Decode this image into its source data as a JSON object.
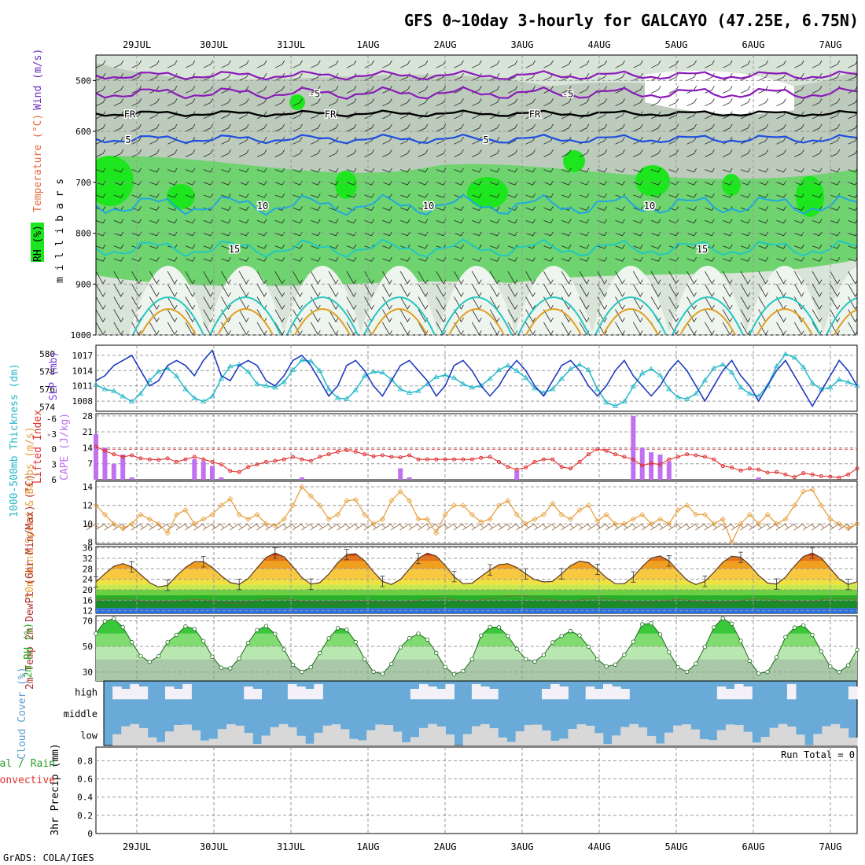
{
  "title": "GFS 0~10day 3-hourly for GALCAYO (47.25E, 6.75N)",
  "credit": "GrADS: COLA/IGES",
  "dates": [
    "29JUL",
    "30JUL",
    "31JUL",
    "1AUG",
    "2AUG",
    "3AUG",
    "4AUG",
    "5AUG",
    "6AUG",
    "7AUG"
  ],
  "colors": {
    "rh_light": "#d8e4d8",
    "rh_mid": "#b9c8b9",
    "rh_green": "#6fd46f",
    "rh_bright": "#1ee61e",
    "temp_purple": "#8a1ab8",
    "temp_blue": "#1f4fe0",
    "temp_cyan": "#22a8e0",
    "temp_teal": "#22c8c0",
    "temp_orange": "#e0a020",
    "slp": "#1f3cc0",
    "thickness": "#22b8c8",
    "cape": "#c070f0",
    "lifted": "#e03030",
    "wind": "#e8a040",
    "tmax": "#e05010",
    "dewpt": "#28a028",
    "rh2m": "#22cc22",
    "cloud": "#6aaad8",
    "cloud_gap": "#f4f0f8",
    "cloud_low": "#d8d8d8"
  },
  "chart_data": [
    {
      "panel": "upper-air",
      "type": "heatmap",
      "xlabel": "",
      "ylabel": "m i l l i b a r s",
      "legend": [
        "RH (%)",
        "Temperature (°C)",
        "Wind (m/s)"
      ],
      "ylim": [
        1000,
        450
      ],
      "yticks": [
        500,
        600,
        700,
        800,
        900,
        1000
      ],
      "contour_labels": [
        "-5",
        "FR",
        "5",
        "10",
        "15"
      ],
      "isotherm_levels_mb": {
        "m5": 525,
        "FR": 565,
        "p5": 615,
        "p10": 745,
        "p15": 830
      },
      "isotherm_labels_text": {
        "m5": "-5",
        "FR": "FR",
        "p5": "5",
        "p10": "10",
        "p15": "15"
      }
    },
    {
      "panel": "slp-thickness",
      "type": "line",
      "ylabel_left": "1000-500mb Thickness (dm)",
      "ylabel_right": "SLP (mb)",
      "left_ticks": [
        574,
        576,
        578,
        580
      ],
      "right_ticks": [
        1008,
        1011,
        1014,
        1017
      ],
      "ylim_slp": [
        1006,
        1019
      ],
      "ylim_thickness": [
        573.5,
        581
      ],
      "series": [
        {
          "name": "SLP",
          "values": [
            1012,
            1013,
            1015,
            1016,
            1017,
            1014,
            1011,
            1012,
            1015,
            1016,
            1015,
            1013,
            1016,
            1018,
            1013,
            1012,
            1015,
            1016,
            1015,
            1012,
            1011,
            1013,
            1016,
            1017,
            1015,
            1012,
            1009,
            1011,
            1015,
            1016,
            1014,
            1011,
            1009,
            1012,
            1015,
            1016,
            1014,
            1012,
            1009,
            1011,
            1015,
            1016,
            1014,
            1011,
            1009,
            1011,
            1014,
            1016,
            1014,
            1011,
            1009,
            1012,
            1015,
            1016,
            1014,
            1011,
            1009,
            1011,
            1014,
            1016,
            1013,
            1011,
            1009,
            1011,
            1014,
            1016,
            1014,
            1011,
            1008,
            1011,
            1014,
            1016,
            1013,
            1011,
            1008,
            1011,
            1014,
            1016,
            1013,
            1010,
            1007,
            1010,
            1013,
            1016,
            1014,
            1011
          ]
        },
        {
          "name": "Thickness",
          "values": [
            576.5,
            576.0,
            575.8,
            575.2,
            574.6,
            575.5,
            577.0,
            578.0,
            578.4,
            577.5,
            576.0,
            575.0,
            574.6,
            575.2,
            577.2,
            578.6,
            578.8,
            578.0,
            576.6,
            576.4,
            576.2,
            576.8,
            578.2,
            579.3,
            579.2,
            578.1,
            576.0,
            575.0,
            574.9,
            575.9,
            577.5,
            578.0,
            577.9,
            577.1,
            576.0,
            575.6,
            575.8,
            576.6,
            577.4,
            577.6,
            577.3,
            576.6,
            576.2,
            576.4,
            577.2,
            578.2,
            578.7,
            578.1,
            577.3,
            576.1,
            575.6,
            576.0,
            577.2,
            578.3,
            578.8,
            578.2,
            576.0,
            574.5,
            574.1,
            574.6,
            576.3,
            577.8,
            578.3,
            577.6,
            576.0,
            575.1,
            574.9,
            575.5,
            577.0,
            578.4,
            578.8,
            577.9,
            576.2,
            575.5,
            575.2,
            576.4,
            578.6,
            580.0,
            579.6,
            578.5,
            576.7,
            576.0,
            576.2,
            577.1,
            576.8,
            576.4
          ]
        }
      ]
    },
    {
      "panel": "cape-lifted",
      "type": "bar",
      "ylabel_left": "Lifted Index",
      "ylabel_right": "CAPE (J/kg)",
      "left_ticks": [
        "6",
        "3",
        "0",
        "-3",
        "-6"
      ],
      "right_ticks": [
        7,
        14,
        21,
        28
      ],
      "ylim_cape": [
        0,
        29
      ],
      "ylim_li": [
        6,
        -7
      ],
      "series": [
        {
          "name": "CAPE",
          "values": [
            20,
            14,
            7,
            11,
            1,
            0,
            0,
            0,
            0,
            0,
            0,
            9,
            8,
            6,
            1,
            0,
            0,
            0,
            0,
            0,
            0,
            0,
            0,
            1,
            0,
            0,
            0,
            0,
            0,
            0,
            0,
            0,
            0,
            0,
            5,
            1,
            0,
            0,
            0,
            0,
            0,
            0,
            0,
            0,
            0,
            0,
            0,
            4,
            0,
            0,
            0,
            0,
            0,
            0,
            0,
            0,
            0,
            0,
            0,
            0,
            28,
            14,
            12,
            11,
            8,
            0,
            0,
            0,
            0,
            0,
            0,
            0,
            0,
            0,
            1,
            0,
            0,
            0,
            0,
            0,
            0,
            0,
            0,
            0,
            0,
            0
          ]
        },
        {
          "name": "Lifted Index",
          "values": [
            -0.5,
            0.3,
            1.0,
            1.5,
            1.2,
            1.8,
            2.0,
            2.1,
            1.8,
            2.5,
            2.0,
            1.5,
            2.0,
            2.5,
            3.0,
            4.3,
            4.5,
            3.5,
            3.0,
            2.5,
            2.3,
            2.0,
            1.5,
            2.0,
            2.3,
            1.5,
            1.0,
            0.5,
            0.2,
            0.5,
            1.0,
            1.4,
            1.2,
            1.5,
            1.6,
            1.2,
            2.0,
            2.0,
            2.0,
            2.0,
            2.0,
            2.0,
            2.0,
            1.7,
            1.5,
            2.5,
            3.5,
            4.0,
            3.6,
            2.5,
            2.0,
            2.0,
            3.5,
            3.8,
            2.5,
            1.0,
            0.0,
            0.3,
            1.0,
            1.5,
            2.0,
            3.2,
            2.8,
            3.0,
            2.0,
            1.5,
            1.0,
            1.2,
            1.5,
            2.0,
            3.3,
            3.6,
            4.2,
            3.8,
            4.0,
            4.6,
            4.5,
            5.0,
            5.5,
            4.7,
            5.0,
            5.3,
            5.4,
            5.6,
            5.0,
            3.8
          ]
        }
      ]
    },
    {
      "panel": "wind10m",
      "type": "line",
      "ylabel": "10m Wind Speed & Barbs (m/s)",
      "yticks": [
        8,
        10,
        12,
        14
      ],
      "ylim": [
        7.8,
        14.6
      ],
      "series": [
        {
          "name": "Wind Speed",
          "values": [
            12.0,
            11.0,
            10.0,
            9.5,
            10.0,
            11.0,
            10.5,
            10.0,
            9.0,
            11.0,
            11.5,
            10.0,
            10.5,
            11.0,
            12.0,
            12.7,
            11.0,
            10.5,
            11.0,
            10.0,
            9.8,
            10.5,
            12.0,
            14.0,
            13.0,
            12.0,
            10.5,
            11.0,
            12.5,
            12.6,
            11.0,
            10.0,
            10.5,
            12.5,
            13.5,
            12.5,
            10.5,
            10.5,
            9.0,
            11.0,
            12.0,
            12.0,
            11.0,
            10.2,
            10.5,
            12.0,
            12.5,
            11.0,
            10.0,
            10.5,
            11.0,
            12.2,
            11.0,
            10.5,
            11.5,
            12.0,
            10.3,
            11.0,
            10.0,
            10.0,
            10.5,
            11.0,
            10.0,
            10.5,
            10.0,
            11.5,
            12.0,
            11.0,
            11.0,
            10.0,
            10.5,
            8.0,
            10.0,
            11.0,
            10.0,
            11.0,
            10.0,
            10.5,
            12.0,
            13.5,
            13.7,
            12.0,
            10.5,
            10.0,
            9.5,
            10.0
          ]
        }
      ]
    },
    {
      "panel": "temp2m",
      "type": "area",
      "ylabel": "2m Temp 2m DewPt (6hr Min/Max) (°C)",
      "yticks": [
        12,
        16,
        20,
        24,
        28,
        32,
        36
      ],
      "ylim": [
        11,
        36.5
      ],
      "tmax_peaks": [
        30,
        31,
        34,
        34,
        34,
        30,
        31,
        33,
        33,
        34,
        34
      ],
      "tmin_troughs": [
        21,
        22,
        22,
        22,
        22,
        23,
        22,
        22,
        22,
        22,
        22
      ],
      "dewpoint_values": [
        16,
        15.5,
        16,
        15,
        16,
        17,
        16,
        15.5,
        15.8,
        16
      ]
    },
    {
      "panel": "rh2m",
      "type": "area",
      "ylabel": "2m RH (%)",
      "yticks": [
        30,
        50,
        70
      ],
      "ylim": [
        23,
        74
      ],
      "peaks": [
        72,
        66,
        66,
        65,
        60,
        66,
        62,
        69,
        72,
        67,
        66
      ],
      "troughs": [
        38,
        32,
        30,
        28,
        28,
        38,
        34,
        30,
        28,
        30,
        29
      ]
    },
    {
      "panel": "cloud-cover",
      "type": "heatmap",
      "ylabel": "Cloud Cover (%)",
      "layers": [
        "high",
        "middle",
        "low"
      ]
    },
    {
      "panel": "precip",
      "type": "bar",
      "ylabel": "3hr Precip (mm)",
      "legend": [
        "Total / Rain",
        "Convective"
      ],
      "yticks": [
        "0",
        "0.2",
        "0.4",
        "0.6",
        "0.8"
      ],
      "ylim": [
        0,
        0.95
      ],
      "run_total": "Run Total = 0",
      "values": [
        0,
        0,
        0,
        0,
        0,
        0,
        0,
        0,
        0,
        0
      ]
    }
  ]
}
